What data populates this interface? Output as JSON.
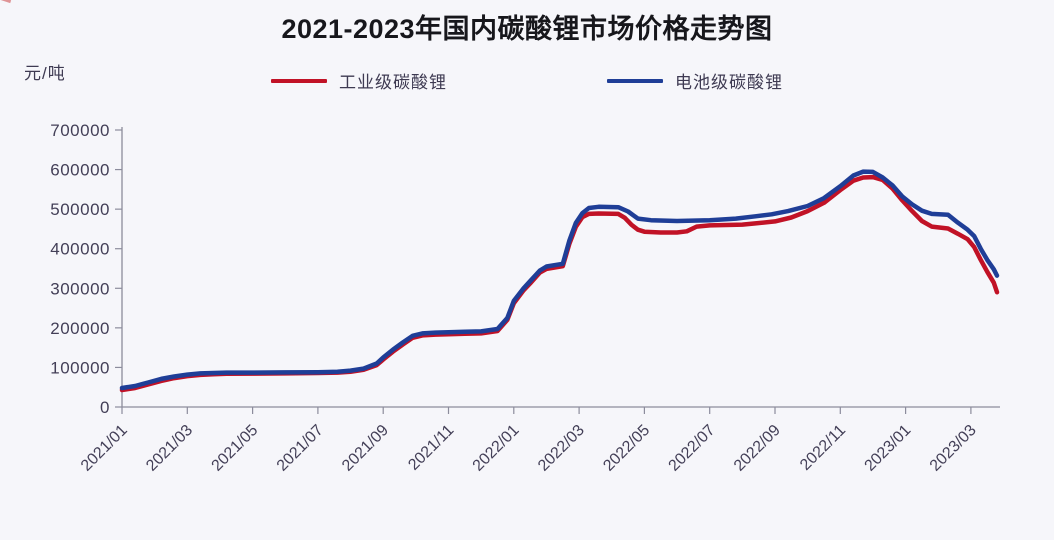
{
  "page": {
    "background": "#f6f6fa"
  },
  "chart": {
    "title": "2021-2023年国内碳酸锂市场价格走势图",
    "y_unit": "元/吨",
    "legend": [
      {
        "label": "工业级碳酸锂",
        "color": "#c11226"
      },
      {
        "label": "电池级碳酸锂",
        "color": "#1f3e97"
      }
    ]
  },
  "chart_data": {
    "type": "line",
    "title": "2021-2023年国内碳酸锂市场价格走势图",
    "ylabel": "元/吨",
    "xlabel": "",
    "ylim": [
      0,
      700000
    ],
    "y_ticks": [
      0,
      100000,
      200000,
      300000,
      400000,
      500000,
      600000,
      700000
    ],
    "x_tick_labels": [
      "2021/01",
      "2021/03",
      "2021/05",
      "2021/07",
      "2021/09",
      "2021/11",
      "2022/01",
      "2022/03",
      "2022/05",
      "2022/07",
      "2022/09",
      "2022/11",
      "2023/01",
      "2023/03"
    ],
    "x_unit": "fractional months since 2021/01",
    "x_range": [
      0,
      26.8
    ],
    "grid": false,
    "legend_position": "top",
    "axis_color": "#8c8c9c",
    "tick_text_color": "#433f57",
    "series": [
      {
        "name": "工业级碳酸锂",
        "color": "#c11226",
        "points": [
          [
            0,
            43000
          ],
          [
            0.4,
            48000
          ],
          [
            0.8,
            57000
          ],
          [
            1.2,
            66000
          ],
          [
            1.6,
            73000
          ],
          [
            2,
            78000
          ],
          [
            2.4,
            81000
          ],
          [
            2.8,
            83000
          ],
          [
            3.2,
            84000
          ],
          [
            4,
            84500
          ],
          [
            5,
            85000
          ],
          [
            6,
            86000
          ],
          [
            6.6,
            87000
          ],
          [
            7,
            89000
          ],
          [
            7.4,
            94000
          ],
          [
            7.8,
            106000
          ],
          [
            8,
            120000
          ],
          [
            8.3,
            140000
          ],
          [
            8.6,
            158000
          ],
          [
            8.9,
            175000
          ],
          [
            9.2,
            181000
          ],
          [
            9.6,
            183000
          ],
          [
            10,
            184000
          ],
          [
            10.5,
            185000
          ],
          [
            11,
            186000
          ],
          [
            11.5,
            192000
          ],
          [
            11.8,
            220000
          ],
          [
            12,
            262000
          ],
          [
            12.3,
            295000
          ],
          [
            12.5,
            312000
          ],
          [
            12.8,
            340000
          ],
          [
            13,
            349000
          ],
          [
            13.5,
            356000
          ],
          [
            13.7,
            412000
          ],
          [
            13.9,
            455000
          ],
          [
            14.1,
            480000
          ],
          [
            14.3,
            488000
          ],
          [
            14.6,
            489000
          ],
          [
            15.2,
            488000
          ],
          [
            15.4,
            478000
          ],
          [
            15.6,
            461000
          ],
          [
            15.8,
            448000
          ],
          [
            16,
            443000
          ],
          [
            16.5,
            441000
          ],
          [
            17,
            441000
          ],
          [
            17.3,
            444000
          ],
          [
            17.6,
            456000
          ],
          [
            18,
            459000
          ],
          [
            18.5,
            460000
          ],
          [
            19,
            461000
          ],
          [
            19.4,
            464000
          ],
          [
            20,
            469000
          ],
          [
            20.5,
            479000
          ],
          [
            21,
            495000
          ],
          [
            21.5,
            516000
          ],
          [
            22,
            548000
          ],
          [
            22.4,
            572000
          ],
          [
            22.7,
            580000
          ],
          [
            23,
            581000
          ],
          [
            23.3,
            574000
          ],
          [
            23.6,
            552000
          ],
          [
            23.9,
            522000
          ],
          [
            24.2,
            495000
          ],
          [
            24.5,
            470000
          ],
          [
            24.8,
            456000
          ],
          [
            25.3,
            451000
          ],
          [
            25.6,
            438000
          ],
          [
            25.9,
            424000
          ],
          [
            26.1,
            404000
          ],
          [
            26.3,
            372000
          ],
          [
            26.5,
            342000
          ],
          [
            26.7,
            314000
          ],
          [
            26.8,
            290000
          ]
        ]
      },
      {
        "name": "电池级碳酸锂",
        "color": "#1f3e97",
        "points": [
          [
            0,
            48000
          ],
          [
            0.4,
            53000
          ],
          [
            0.8,
            62000
          ],
          [
            1.2,
            71000
          ],
          [
            1.6,
            77000
          ],
          [
            2,
            82000
          ],
          [
            2.4,
            85000
          ],
          [
            2.8,
            86000
          ],
          [
            3.2,
            87000
          ],
          [
            4,
            87000
          ],
          [
            5,
            87500
          ],
          [
            6,
            88000
          ],
          [
            6.6,
            89000
          ],
          [
            7,
            92000
          ],
          [
            7.4,
            97000
          ],
          [
            7.8,
            110000
          ],
          [
            8,
            125000
          ],
          [
            8.3,
            145000
          ],
          [
            8.6,
            163000
          ],
          [
            8.9,
            180000
          ],
          [
            9.2,
            186000
          ],
          [
            9.6,
            188000
          ],
          [
            10,
            189000
          ],
          [
            10.5,
            190000
          ],
          [
            11,
            191000
          ],
          [
            11.5,
            197000
          ],
          [
            11.8,
            225000
          ],
          [
            12,
            268000
          ],
          [
            12.3,
            300000
          ],
          [
            12.5,
            318000
          ],
          [
            12.8,
            345000
          ],
          [
            13,
            355000
          ],
          [
            13.5,
            362000
          ],
          [
            13.7,
            420000
          ],
          [
            13.9,
            465000
          ],
          [
            14.1,
            490000
          ],
          [
            14.3,
            503000
          ],
          [
            14.6,
            506000
          ],
          [
            15.2,
            505000
          ],
          [
            15.5,
            494000
          ],
          [
            15.8,
            476000
          ],
          [
            16.2,
            472000
          ],
          [
            17,
            470000
          ],
          [
            18,
            472000
          ],
          [
            18.8,
            476000
          ],
          [
            19.4,
            482000
          ],
          [
            19.9,
            487000
          ],
          [
            20.4,
            495000
          ],
          [
            21,
            508000
          ],
          [
            21.5,
            528000
          ],
          [
            22,
            558000
          ],
          [
            22.4,
            585000
          ],
          [
            22.7,
            595000
          ],
          [
            23,
            594000
          ],
          [
            23.3,
            580000
          ],
          [
            23.6,
            560000
          ],
          [
            23.9,
            532000
          ],
          [
            24.2,
            512000
          ],
          [
            24.5,
            496000
          ],
          [
            24.8,
            488000
          ],
          [
            25.3,
            486000
          ],
          [
            25.6,
            466000
          ],
          [
            25.9,
            448000
          ],
          [
            26.1,
            432000
          ],
          [
            26.3,
            400000
          ],
          [
            26.5,
            372000
          ],
          [
            26.7,
            348000
          ],
          [
            26.8,
            332000
          ]
        ]
      }
    ]
  }
}
